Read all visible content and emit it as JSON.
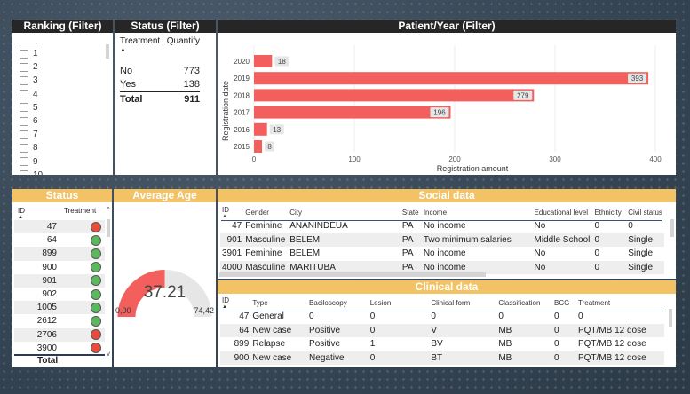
{
  "ranking": {
    "title": "Ranking (Filter)",
    "items": [
      "1",
      "2",
      "3",
      "4",
      "5",
      "6",
      "7",
      "8",
      "9",
      "10"
    ]
  },
  "status_filter": {
    "title": "Status (Filter)",
    "headers": {
      "treatment": "Treatment",
      "quantify": "Quantify"
    },
    "rows": [
      {
        "label": "No",
        "value": "773"
      },
      {
        "label": "Yes",
        "value": "138"
      }
    ],
    "total": {
      "label": "Total",
      "value": "911"
    }
  },
  "patient_year": {
    "title": "Patient/Year (Filter)"
  },
  "chart_data": {
    "type": "bar",
    "orientation": "horizontal",
    "categories": [
      "2020",
      "2019",
      "2018",
      "2017",
      "2016",
      "2015"
    ],
    "values": [
      18,
      393,
      279,
      196,
      13,
      8
    ],
    "xlabel": "Registration amount",
    "ylabel": "Registration date",
    "xlim": [
      0,
      400
    ],
    "xticks": [
      "0",
      "100",
      "200",
      "300",
      "400"
    ],
    "bar_color": "#f25f5c"
  },
  "status": {
    "title": "Status",
    "headers": {
      "id": "ID",
      "treatment": "Treatment"
    },
    "rows": [
      {
        "id": "47",
        "status": "red"
      },
      {
        "id": "64",
        "status": "green"
      },
      {
        "id": "899",
        "status": "green"
      },
      {
        "id": "900",
        "status": "green"
      },
      {
        "id": "901",
        "status": "green"
      },
      {
        "id": "902",
        "status": "green"
      },
      {
        "id": "1005",
        "status": "green"
      },
      {
        "id": "2612",
        "status": "green"
      },
      {
        "id": "2706",
        "status": "red"
      },
      {
        "id": "3900",
        "status": "red"
      }
    ],
    "total_label": "Total",
    "colors": {
      "red": "#e74c3c",
      "green": "#5cb85c"
    }
  },
  "average_age": {
    "title": "Average Age",
    "value": "37.21",
    "value_num": 37.21,
    "min": "0,00",
    "max": "74,42",
    "min_num": 0,
    "max_num": 74.42,
    "color": "#f25f5c"
  },
  "social": {
    "title": "Social data",
    "headers": [
      "ID",
      "Gender",
      "City",
      "State",
      "Income",
      "Educational level",
      "Ethnicity",
      "Civil status"
    ],
    "rows": [
      [
        "47",
        "Feminine",
        "ANANINDEUA",
        "PA",
        "No income",
        "No",
        "0",
        "0"
      ],
      [
        "901",
        "Masculine",
        "BELEM",
        "PA",
        "Two minimum salaries",
        "Middle School",
        "0",
        "Single"
      ],
      [
        "3901",
        "Feminine",
        "BELEM",
        "PA",
        "No income",
        "No",
        "0",
        "Single"
      ],
      [
        "4000",
        "Masculine",
        "MARITUBA",
        "PA",
        "No income",
        "No",
        "0",
        "Single"
      ]
    ]
  },
  "clinical": {
    "title": "Clinical data",
    "headers": [
      "ID",
      "Type",
      "Baciloscopy",
      "Lesion",
      "Clinical form",
      "Classification",
      "BCG",
      "Treatment"
    ],
    "rows": [
      [
        "47",
        "General",
        "0",
        "0",
        "0",
        "0",
        "0",
        "0"
      ],
      [
        "64",
        "New case",
        "Positive",
        "0",
        "V",
        "MB",
        "0",
        "PQT/MB 12 dose"
      ],
      [
        "899",
        "Relapse",
        "Positive",
        "1",
        "BV",
        "MB",
        "0",
        "PQT/MB 12 dose"
      ],
      [
        "900",
        "New case",
        "Negative",
        "0",
        "BT",
        "MB",
        "0",
        "PQT/MB 12 dose"
      ]
    ]
  }
}
